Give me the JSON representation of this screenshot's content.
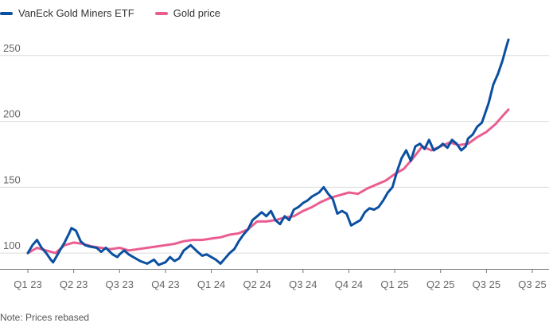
{
  "chart_data": {
    "type": "line",
    "title": "",
    "xlabel": "",
    "ylabel": "",
    "legend_position": "top-left",
    "grid": "horizontal",
    "x_ticks": [
      "Q1 23",
      "Q2 23",
      "Q3 23",
      "Q4 23",
      "Q1 24",
      "Q2 24",
      "Q3 24",
      "Q4 24",
      "Q1 25",
      "Q2 25",
      "Q3 25",
      "Q3 25"
    ],
    "y_ticks": [
      100,
      150,
      200,
      250
    ],
    "ylim": [
      88,
      268
    ],
    "series": [
      {
        "name": "VanEck Gold Miners ETF",
        "color": "#0b4fa0",
        "points": [
          [
            0.0,
            100
          ],
          [
            0.1,
            106
          ],
          [
            0.2,
            110
          ],
          [
            0.3,
            104
          ],
          [
            0.4,
            100
          ],
          [
            0.5,
            95
          ],
          [
            0.55,
            93
          ],
          [
            0.6,
            96
          ],
          [
            0.7,
            102
          ],
          [
            0.8,
            108
          ],
          [
            0.9,
            115
          ],
          [
            0.95,
            119
          ],
          [
            1.0,
            118
          ],
          [
            1.05,
            117
          ],
          [
            1.15,
            109
          ],
          [
            1.25,
            106
          ],
          [
            1.35,
            105
          ],
          [
            1.5,
            104
          ],
          [
            1.6,
            101
          ],
          [
            1.7,
            104
          ],
          [
            1.85,
            99
          ],
          [
            1.95,
            97
          ],
          [
            2.0,
            99
          ],
          [
            2.1,
            102
          ],
          [
            2.2,
            99
          ],
          [
            2.35,
            96
          ],
          [
            2.45,
            94
          ],
          [
            2.6,
            92
          ],
          [
            2.75,
            95
          ],
          [
            2.85,
            91
          ],
          [
            3.0,
            93
          ],
          [
            3.1,
            97
          ],
          [
            3.2,
            94
          ],
          [
            3.3,
            96
          ],
          [
            3.4,
            102
          ],
          [
            3.55,
            106
          ],
          [
            3.7,
            101
          ],
          [
            3.8,
            98
          ],
          [
            3.9,
            99
          ],
          [
            4.0,
            97
          ],
          [
            4.1,
            95
          ],
          [
            4.2,
            92
          ],
          [
            4.3,
            96
          ],
          [
            4.4,
            100
          ],
          [
            4.5,
            103
          ],
          [
            4.6,
            109
          ],
          [
            4.7,
            114
          ],
          [
            4.8,
            118
          ],
          [
            4.9,
            125
          ],
          [
            5.0,
            128
          ],
          [
            5.1,
            131
          ],
          [
            5.2,
            128
          ],
          [
            5.3,
            132
          ],
          [
            5.4,
            125
          ],
          [
            5.5,
            122
          ],
          [
            5.6,
            128
          ],
          [
            5.7,
            125
          ],
          [
            5.8,
            133
          ],
          [
            5.9,
            135
          ],
          [
            6.0,
            138
          ],
          [
            6.1,
            140
          ],
          [
            6.2,
            143
          ],
          [
            6.35,
            146
          ],
          [
            6.45,
            150
          ],
          [
            6.55,
            145
          ],
          [
            6.65,
            141
          ],
          [
            6.75,
            130
          ],
          [
            6.85,
            132
          ],
          [
            6.95,
            130
          ],
          [
            7.05,
            121
          ],
          [
            7.15,
            123
          ],
          [
            7.25,
            125
          ],
          [
            7.35,
            131
          ],
          [
            7.45,
            134
          ],
          [
            7.55,
            133
          ],
          [
            7.65,
            135
          ],
          [
            7.75,
            140
          ],
          [
            7.85,
            146
          ],
          [
            7.95,
            150
          ],
          [
            8.05,
            162
          ],
          [
            8.15,
            172
          ],
          [
            8.25,
            178
          ],
          [
            8.35,
            170
          ],
          [
            8.45,
            181
          ],
          [
            8.55,
            183
          ],
          [
            8.65,
            179
          ],
          [
            8.75,
            186
          ],
          [
            8.85,
            178
          ],
          [
            8.95,
            180
          ],
          [
            9.05,
            183
          ],
          [
            9.15,
            180
          ],
          [
            9.25,
            186
          ],
          [
            9.35,
            183
          ],
          [
            9.45,
            178
          ],
          [
            9.55,
            181
          ],
          [
            9.6,
            187
          ],
          [
            9.7,
            190
          ],
          [
            9.8,
            196
          ],
          [
            9.9,
            199
          ],
          [
            9.95,
            204
          ],
          [
            10.05,
            214
          ],
          [
            10.15,
            228
          ],
          [
            10.25,
            236
          ],
          [
            10.35,
            246
          ],
          [
            10.42,
            255
          ],
          [
            10.48,
            262
          ]
        ]
      },
      {
        "name": "Gold price",
        "color": "#ea5d91",
        "points": [
          [
            0.0,
            100
          ],
          [
            0.2,
            104
          ],
          [
            0.4,
            102
          ],
          [
            0.6,
            100
          ],
          [
            0.8,
            106
          ],
          [
            1.0,
            108
          ],
          [
            1.2,
            107
          ],
          [
            1.4,
            105
          ],
          [
            1.6,
            104
          ],
          [
            1.8,
            103
          ],
          [
            2.0,
            104
          ],
          [
            2.2,
            102
          ],
          [
            2.4,
            103
          ],
          [
            2.6,
            104
          ],
          [
            2.8,
            105
          ],
          [
            3.0,
            106
          ],
          [
            3.2,
            107
          ],
          [
            3.4,
            109
          ],
          [
            3.6,
            110
          ],
          [
            3.8,
            110
          ],
          [
            4.0,
            111
          ],
          [
            4.2,
            112
          ],
          [
            4.4,
            114
          ],
          [
            4.6,
            115
          ],
          [
            4.8,
            118
          ],
          [
            5.0,
            124
          ],
          [
            5.2,
            124
          ],
          [
            5.4,
            125
          ],
          [
            5.6,
            127
          ],
          [
            5.8,
            128
          ],
          [
            6.0,
            132
          ],
          [
            6.2,
            135
          ],
          [
            6.4,
            139
          ],
          [
            6.6,
            142
          ],
          [
            6.8,
            144
          ],
          [
            7.0,
            146
          ],
          [
            7.2,
            145
          ],
          [
            7.4,
            149
          ],
          [
            7.6,
            152
          ],
          [
            7.8,
            155
          ],
          [
            8.0,
            160
          ],
          [
            8.2,
            164
          ],
          [
            8.4,
            172
          ],
          [
            8.6,
            181
          ],
          [
            8.8,
            178
          ],
          [
            9.0,
            181
          ],
          [
            9.2,
            184
          ],
          [
            9.4,
            182
          ],
          [
            9.6,
            183
          ],
          [
            9.8,
            188
          ],
          [
            10.0,
            192
          ],
          [
            10.2,
            198
          ],
          [
            10.35,
            204
          ],
          [
            10.48,
            209
          ]
        ]
      }
    ]
  },
  "legend": {
    "series_1_label": "VanEck Gold Miners ETF",
    "series_2_label": "Gold price"
  },
  "note": "Note: Prices rebased"
}
